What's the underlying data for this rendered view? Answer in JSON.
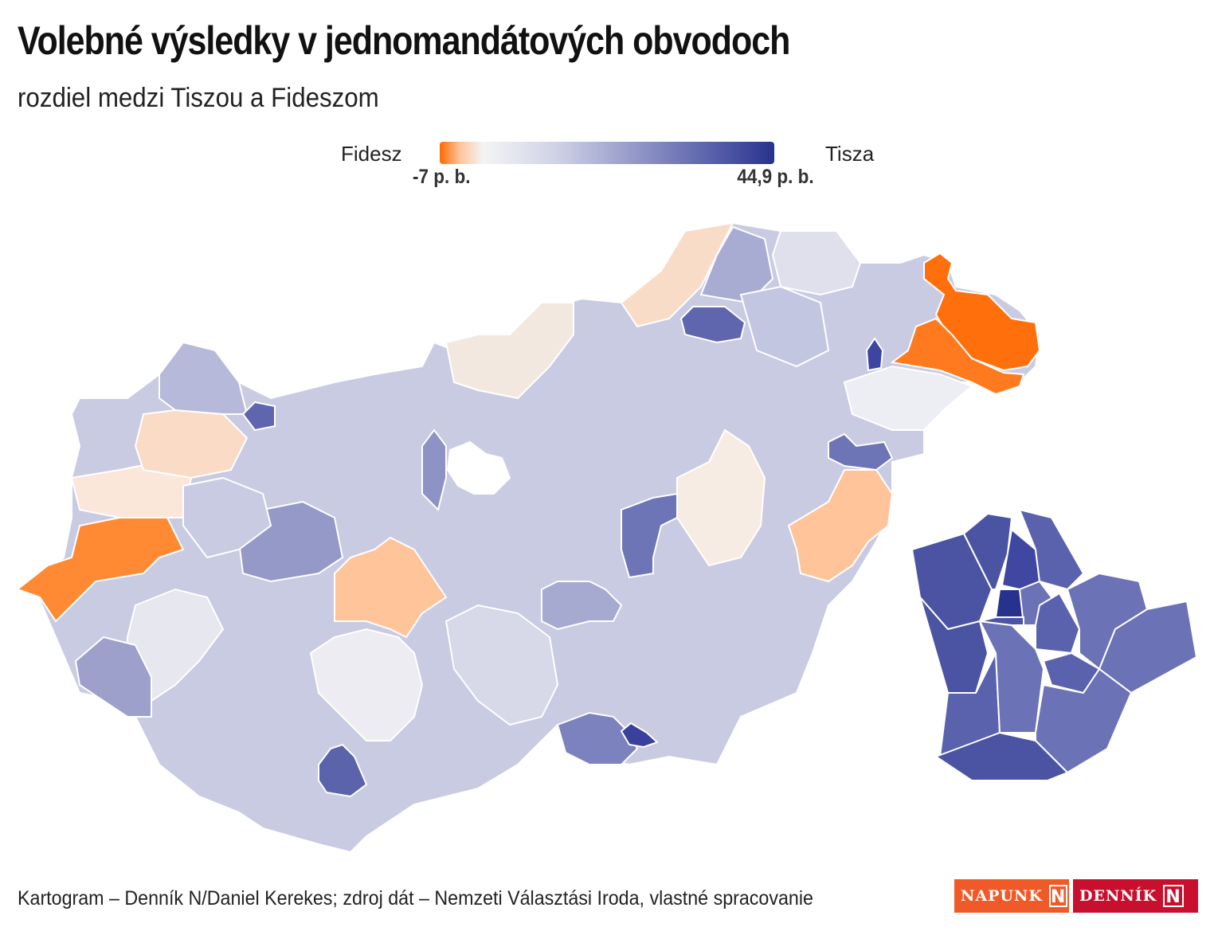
{
  "header": {
    "title": "Volebné výsledky v jednomandátových obvodoch",
    "subtitle": "rozdiel medzi Tiszou a Fideszom"
  },
  "legend": {
    "left_label": "Fidesz",
    "right_label": "Tisza",
    "min_label": "-7 p. b.",
    "max_label": "44,9 p. b.",
    "min_value": -7,
    "max_value": 44.9,
    "colors": {
      "fidesz_strong": "#ff6a00",
      "fidesz_light": "#ffc49a",
      "neutral": "#f4f4f6",
      "tisza_mid": "#8f94c6",
      "tisza_strong": "#27328c"
    }
  },
  "footer": {
    "source": "Kartogram – Denník N/Daniel Kerekes; zdroj dát – Nemzeti Választási Iroda, vlastné spracovanie",
    "logo_napunk": "NAPUNK",
    "logo_dennik": "DENNÍK",
    "logo_mark": "N"
  },
  "map_data": {
    "regions": [
      {
        "id": "nw-1",
        "fill": "#ff8a33"
      },
      {
        "id": "nw-2",
        "fill": "#fbe7da"
      },
      {
        "id": "nw-3",
        "fill": "#f9dbc6"
      },
      {
        "id": "nw-4",
        "fill": "#b6b9d9"
      },
      {
        "id": "nw-5",
        "fill": "#5f66ad"
      },
      {
        "id": "nw-6",
        "fill": "#9599c8"
      },
      {
        "id": "n-1",
        "fill": "#f3e8e0"
      },
      {
        "id": "n-2",
        "fill": "#f9dcc8"
      },
      {
        "id": "n-3",
        "fill": "#a9acd2"
      },
      {
        "id": "n-4",
        "fill": "#5f66ad"
      },
      {
        "id": "ne-1",
        "fill": "#ff6f0c"
      },
      {
        "id": "ne-2",
        "fill": "#ff7a1f"
      },
      {
        "id": "ne-3",
        "fill": "#dfe0ec"
      },
      {
        "id": "ne-4",
        "fill": "#eceef4"
      },
      {
        "id": "ne-5",
        "fill": "#c3c6e0"
      },
      {
        "id": "ne-6",
        "fill": "#3d45a0"
      },
      {
        "id": "e-1",
        "fill": "#ffc49a"
      },
      {
        "id": "e-2",
        "fill": "#f6ece4"
      },
      {
        "id": "e-3",
        "fill": "#6e75b6"
      },
      {
        "id": "c-1",
        "fill": "#ffc49a"
      },
      {
        "id": "c-2",
        "fill": "#6e75b6"
      },
      {
        "id": "c-3",
        "fill": "#8e92c4"
      },
      {
        "id": "c-4",
        "fill": "#c9cbe2"
      },
      {
        "id": "c-5",
        "fill": "#a6a9d0"
      },
      {
        "id": "s-1",
        "fill": "#ececf2"
      },
      {
        "id": "s-2",
        "fill": "#5b63ab"
      },
      {
        "id": "s-3",
        "fill": "#7c82bd"
      },
      {
        "id": "s-4",
        "fill": "#3a419c"
      },
      {
        "id": "s-5",
        "fill": "#d7d8e8"
      },
      {
        "id": "sw-1",
        "fill": "#e6e7ef"
      },
      {
        "id": "sw-2",
        "fill": "#9da0cb"
      },
      {
        "id": "budapest-center",
        "fill": "#27328c"
      }
    ]
  }
}
